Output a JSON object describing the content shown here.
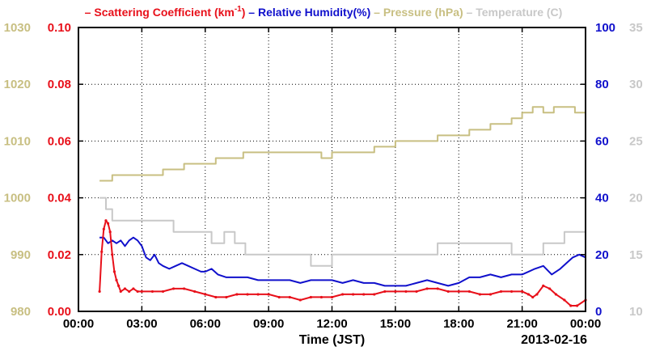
{
  "chart_data": {
    "type": "line",
    "title": "",
    "legend": {
      "placement": "top",
      "items": [
        {
          "key": "scatter",
          "text": "Scattering Coefficient (km",
          "sup": "-1",
          "suffix": ")",
          "color": "#e8101a"
        },
        {
          "key": "rh",
          "text": "Relative Humidity(%)",
          "color": "#1010cc"
        },
        {
          "key": "pressure",
          "text": "Pressure (hPa)",
          "color": "#c8bf82"
        },
        {
          "key": "temperature",
          "text": "Temperature (C)",
          "color": "#c8c8c8"
        }
      ]
    },
    "xlabel": "Time (JST)",
    "date_label": "2013-02-16",
    "x_ticks": [
      "00:00",
      "03:00",
      "06:00",
      "09:00",
      "12:00",
      "15:00",
      "18:00",
      "21:00",
      "00:00"
    ],
    "xlim_hours": [
      0,
      24
    ],
    "grid": true,
    "axes": {
      "pressure": {
        "side": "left-outer",
        "ylim": [
          980,
          1030
        ],
        "ticks": [
          "980",
          "990",
          "1000",
          "1010",
          "1020",
          "1030"
        ],
        "color": "#c8bf82"
      },
      "scatter": {
        "side": "left-inner",
        "ylim": [
          0,
          0.1
        ],
        "ticks": [
          "0.00",
          "0.02",
          "0.04",
          "0.06",
          "0.08",
          "0.10"
        ],
        "color": "#e8101a"
      },
      "rh": {
        "side": "right-inner",
        "ylim": [
          0,
          100
        ],
        "ticks": [
          "0",
          "20",
          "40",
          "60",
          "80",
          "100"
        ],
        "color": "#1010cc"
      },
      "temperature": {
        "side": "right-outer",
        "ylim": [
          10,
          35
        ],
        "ticks": [
          "10",
          "15",
          "20",
          "25",
          "30",
          "35"
        ],
        "color": "#c8c8c8"
      }
    },
    "series": [
      {
        "name": "Scattering Coefficient",
        "axis": "scatter",
        "color": "#e8101a",
        "marker": true,
        "x": [
          1.0,
          1.1,
          1.2,
          1.3,
          1.4,
          1.5,
          1.6,
          1.7,
          1.8,
          1.9,
          2.0,
          2.2,
          2.4,
          2.6,
          2.8,
          3.0,
          3.5,
          4.0,
          4.5,
          5.0,
          5.5,
          6.0,
          6.5,
          7.0,
          7.5,
          8.0,
          8.5,
          9.0,
          9.5,
          10.0,
          10.5,
          11.0,
          11.5,
          12.0,
          12.5,
          13.0,
          13.5,
          14.0,
          14.5,
          15.0,
          15.5,
          16.0,
          16.5,
          17.0,
          17.5,
          18.0,
          18.5,
          19.0,
          19.5,
          20.0,
          20.5,
          21.0,
          21.3,
          21.5,
          21.7,
          22.0,
          22.3,
          22.6,
          23.0,
          23.3,
          23.6,
          24.0
        ],
        "y": [
          0.007,
          0.021,
          0.029,
          0.032,
          0.031,
          0.028,
          0.02,
          0.014,
          0.011,
          0.009,
          0.007,
          0.008,
          0.007,
          0.008,
          0.007,
          0.007,
          0.007,
          0.007,
          0.008,
          0.008,
          0.007,
          0.006,
          0.005,
          0.005,
          0.006,
          0.006,
          0.006,
          0.006,
          0.005,
          0.005,
          0.004,
          0.005,
          0.005,
          0.005,
          0.006,
          0.006,
          0.006,
          0.006,
          0.007,
          0.007,
          0.007,
          0.007,
          0.008,
          0.008,
          0.007,
          0.007,
          0.007,
          0.006,
          0.006,
          0.007,
          0.007,
          0.007,
          0.006,
          0.005,
          0.006,
          0.009,
          0.008,
          0.006,
          0.004,
          0.002,
          0.002,
          0.004
        ]
      },
      {
        "name": "Relative Humidity",
        "axis": "rh",
        "color": "#1010cc",
        "marker": false,
        "x": [
          1.0,
          1.2,
          1.4,
          1.6,
          1.8,
          2.0,
          2.2,
          2.4,
          2.6,
          2.8,
          3.0,
          3.2,
          3.4,
          3.6,
          3.8,
          4.0,
          4.3,
          4.6,
          4.9,
          5.2,
          5.5,
          5.8,
          6.0,
          6.3,
          6.6,
          7.0,
          7.5,
          8.0,
          8.5,
          9.0,
          9.5,
          10.0,
          10.5,
          11.0,
          11.5,
          12.0,
          12.5,
          13.0,
          13.5,
          14.0,
          14.5,
          15.0,
          15.5,
          16.0,
          16.5,
          17.0,
          17.5,
          18.0,
          18.5,
          19.0,
          19.5,
          20.0,
          20.5,
          21.0,
          21.3,
          21.6,
          22.0,
          22.4,
          22.8,
          23.1,
          23.4,
          23.7,
          24.0
        ],
        "y": [
          26,
          26,
          24,
          25,
          24,
          25,
          23,
          25,
          26,
          25,
          23,
          19,
          18,
          20,
          17,
          16,
          15,
          16,
          17,
          16,
          15,
          14,
          14,
          15,
          13,
          12,
          12,
          12,
          11,
          11,
          11,
          11,
          10,
          11,
          11,
          11,
          10,
          11,
          10,
          10,
          9,
          9,
          9,
          10,
          11,
          10,
          9,
          10,
          12,
          12,
          13,
          12,
          13,
          13,
          14,
          15,
          16,
          13,
          15,
          17,
          19,
          20,
          19
        ]
      },
      {
        "name": "Pressure",
        "axis": "pressure",
        "color": "#c8bf82",
        "step": true,
        "x": [
          1.0,
          1.6,
          2.0,
          2.7,
          3.2,
          4.0,
          4.5,
          5.0,
          6.0,
          6.5,
          7.0,
          7.8,
          8.5,
          9.0,
          10.0,
          11.0,
          11.5,
          12.0,
          13.0,
          14.0,
          14.5,
          15.0,
          16.0,
          17.0,
          17.8,
          18.5,
          19.0,
          19.5,
          20.0,
          20.5,
          21.0,
          21.5,
          22.0,
          22.5,
          23.0,
          23.5,
          24.0
        ],
        "y": [
          1003,
          1004,
          1004,
          1004,
          1004,
          1005,
          1005,
          1006,
          1006,
          1007,
          1007,
          1008,
          1008,
          1008,
          1008,
          1008,
          1007,
          1008,
          1008,
          1009,
          1009,
          1010,
          1010,
          1011,
          1011,
          1012,
          1012,
          1013,
          1013,
          1014,
          1015,
          1016,
          1015,
          1016,
          1016,
          1015,
          1015
        ]
      },
      {
        "name": "Temperature",
        "axis": "temperature",
        "color": "#c8c8c8",
        "step": true,
        "x": [
          1.0,
          1.3,
          1.6,
          2.0,
          3.0,
          4.0,
          4.5,
          5.0,
          6.0,
          6.3,
          6.9,
          7.0,
          7.4,
          7.9,
          8.5,
          9.0,
          10.0,
          10.5,
          11.0,
          12.0,
          13.0,
          14.0,
          15.0,
          16.0,
          16.5,
          17.0,
          18.0,
          19.0,
          19.5,
          20.0,
          20.5,
          21.0,
          21.5,
          22.0,
          22.5,
          23.0,
          23.5,
          24.0
        ],
        "y": [
          20,
          19,
          18,
          18,
          18,
          18,
          17,
          17,
          17,
          16,
          17,
          17,
          16,
          15,
          15,
          15,
          15,
          15,
          14,
          15,
          15,
          15,
          15,
          15,
          15,
          16,
          16,
          16,
          16,
          16,
          15,
          15,
          15,
          16,
          16,
          17,
          17,
          17
        ]
      }
    ]
  }
}
